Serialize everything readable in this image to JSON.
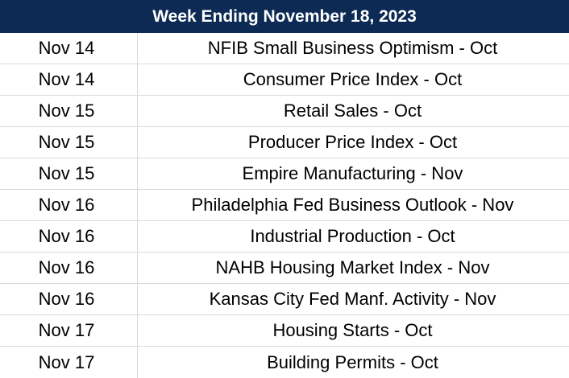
{
  "header": {
    "title": "Week Ending November 18, 2023"
  },
  "colors": {
    "header_bg": "#0c2a54",
    "header_text": "#ffffff",
    "grid_line": "#d9d9d9"
  },
  "rows": [
    {
      "date": "Nov 14",
      "event": "NFIB Small Business Optimism - Oct"
    },
    {
      "date": "Nov 14",
      "event": "Consumer Price Index - Oct"
    },
    {
      "date": "Nov 15",
      "event": "Retail Sales - Oct"
    },
    {
      "date": "Nov 15",
      "event": "Producer Price Index - Oct"
    },
    {
      "date": "Nov 15",
      "event": "Empire Manufacturing - Nov"
    },
    {
      "date": "Nov 16",
      "event": "Philadelphia Fed Business Outlook - Nov"
    },
    {
      "date": "Nov 16",
      "event": "Industrial Production - Oct"
    },
    {
      "date": "Nov 16",
      "event": "NAHB Housing Market Index - Nov"
    },
    {
      "date": "Nov 16",
      "event": "Kansas City Fed Manf. Activity - Nov"
    },
    {
      "date": "Nov 17",
      "event": "Housing Starts - Oct"
    },
    {
      "date": "Nov 17",
      "event": "Building Permits - Oct"
    }
  ]
}
